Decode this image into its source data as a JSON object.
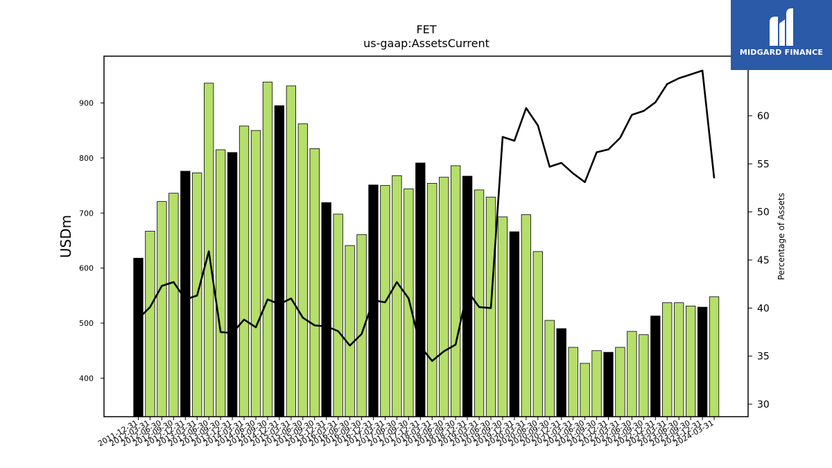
{
  "logo": {
    "text": "MIDGARD FINANCE",
    "background": "#2a5aa8"
  },
  "colors": {
    "bar_default": "#b5de6b",
    "bar_highlight": "#000000",
    "line": "#000000"
  },
  "chart_data": {
    "type": "bar",
    "title": "FET",
    "subtitle": "us-gaap:AssetsCurrent",
    "ylabel": "USDm",
    "y2label": "Percentage of Assets",
    "ylim": [
      330,
      985
    ],
    "y2lim": [
      28.7,
      66.2
    ],
    "yticks": [
      400,
      500,
      600,
      700,
      800,
      900
    ],
    "y2ticks": [
      30,
      35,
      40,
      45,
      50,
      55,
      60
    ],
    "grid": false,
    "categories": [
      "2011-12-31",
      "2012-03-31",
      "2012-06-30",
      "2012-09-30",
      "2012-12-31",
      "2013-03-31",
      "2013-06-30",
      "2013-09-30",
      "2013-12-31",
      "2014-03-31",
      "2014-06-30",
      "2014-09-30",
      "2014-12-31",
      "2015-03-31",
      "2015-06-30",
      "2015-09-30",
      "2015-12-31",
      "2016-03-31",
      "2016-06-30",
      "2016-09-30",
      "2016-12-31",
      "2017-03-31",
      "2017-06-30",
      "2017-09-30",
      "2017-12-31",
      "2018-03-31",
      "2018-06-30",
      "2018-09-30",
      "2018-12-31",
      "2019-03-31",
      "2019-06-30",
      "2019-09-30",
      "2019-12-31",
      "2020-03-31",
      "2020-06-30",
      "2020-09-30",
      "2020-12-31",
      "2021-03-31",
      "2021-06-30",
      "2021-09-30",
      "2021-12-31",
      "2022-03-31",
      "2022-06-30",
      "2022-09-30",
      "2022-12-31",
      "2023-03-31",
      "2023-06-30",
      "2023-09-30",
      "2023-12-31",
      "2024-03-31"
    ],
    "series": [
      {
        "type": "bar",
        "values": [
          618,
          667,
          721,
          736,
          776,
          773,
          936,
          815,
          810,
          858,
          850,
          938,
          895,
          931,
          862,
          817,
          719,
          698,
          641,
          661,
          751,
          750,
          768,
          744,
          791,
          754,
          765,
          786,
          767,
          742,
          729,
          693,
          666,
          697,
          630,
          505,
          490,
          456,
          427,
          450,
          447,
          456,
          485,
          479,
          513,
          537,
          537,
          531,
          529,
          548
        ],
        "highlight": [
          true,
          false,
          false,
          false,
          true,
          false,
          false,
          false,
          true,
          false,
          false,
          false,
          true,
          false,
          false,
          false,
          true,
          false,
          false,
          false,
          true,
          false,
          false,
          false,
          true,
          false,
          false,
          false,
          true,
          false,
          false,
          false,
          true,
          false,
          false,
          false,
          true,
          false,
          false,
          false,
          true,
          false,
          false,
          false,
          true,
          false,
          false,
          false,
          true,
          false
        ]
      },
      {
        "type": "line",
        "axis": "right",
        "values": [
          38.9,
          40.1,
          42.3,
          42.7,
          40.9,
          41.3,
          45.9,
          37.5,
          37.4,
          38.8,
          38.0,
          40.9,
          40.4,
          41.0,
          39.0,
          38.2,
          38.1,
          37.6,
          36.1,
          37.3,
          40.8,
          40.6,
          42.7,
          41.0,
          36.0,
          34.5,
          35.5,
          36.2,
          41.8,
          40.1,
          40.0,
          57.8,
          57.4,
          60.8,
          59.0,
          54.7,
          55.1,
          54.0,
          53.1,
          56.2,
          56.5,
          57.7,
          60.1,
          60.5,
          61.4,
          63.3,
          63.9,
          64.3,
          64.7,
          53.5
        ]
      }
    ]
  }
}
